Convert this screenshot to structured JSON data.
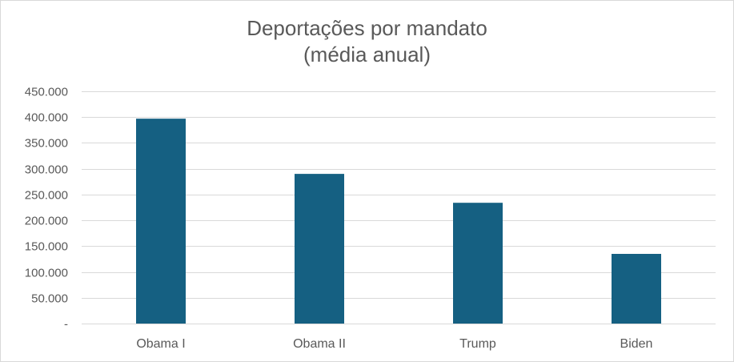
{
  "chart_data": {
    "type": "bar",
    "title": "Deportações por mandato",
    "subtitle": "(média anual)",
    "categories": [
      "Obama I",
      "Obama II",
      "Trump",
      "Biden"
    ],
    "values": [
      397000,
      290000,
      234000,
      135000
    ],
    "ylim": [
      0,
      450000
    ],
    "yticks": [
      {
        "value": 0,
        "label": "-"
      },
      {
        "value": 50000,
        "label": "50.000"
      },
      {
        "value": 100000,
        "label": "100.000"
      },
      {
        "value": 150000,
        "label": "150.000"
      },
      {
        "value": 200000,
        "label": "200.000"
      },
      {
        "value": 250000,
        "label": "250.000"
      },
      {
        "value": 300000,
        "label": "300.000"
      },
      {
        "value": 350000,
        "label": "350.000"
      },
      {
        "value": 400000,
        "label": "400.000"
      },
      {
        "value": 450000,
        "label": "450.000"
      }
    ],
    "grid": true,
    "legend": "none",
    "colors": {
      "bar": "#156082",
      "grid": "#d9d9d9",
      "text": "#595959"
    }
  }
}
